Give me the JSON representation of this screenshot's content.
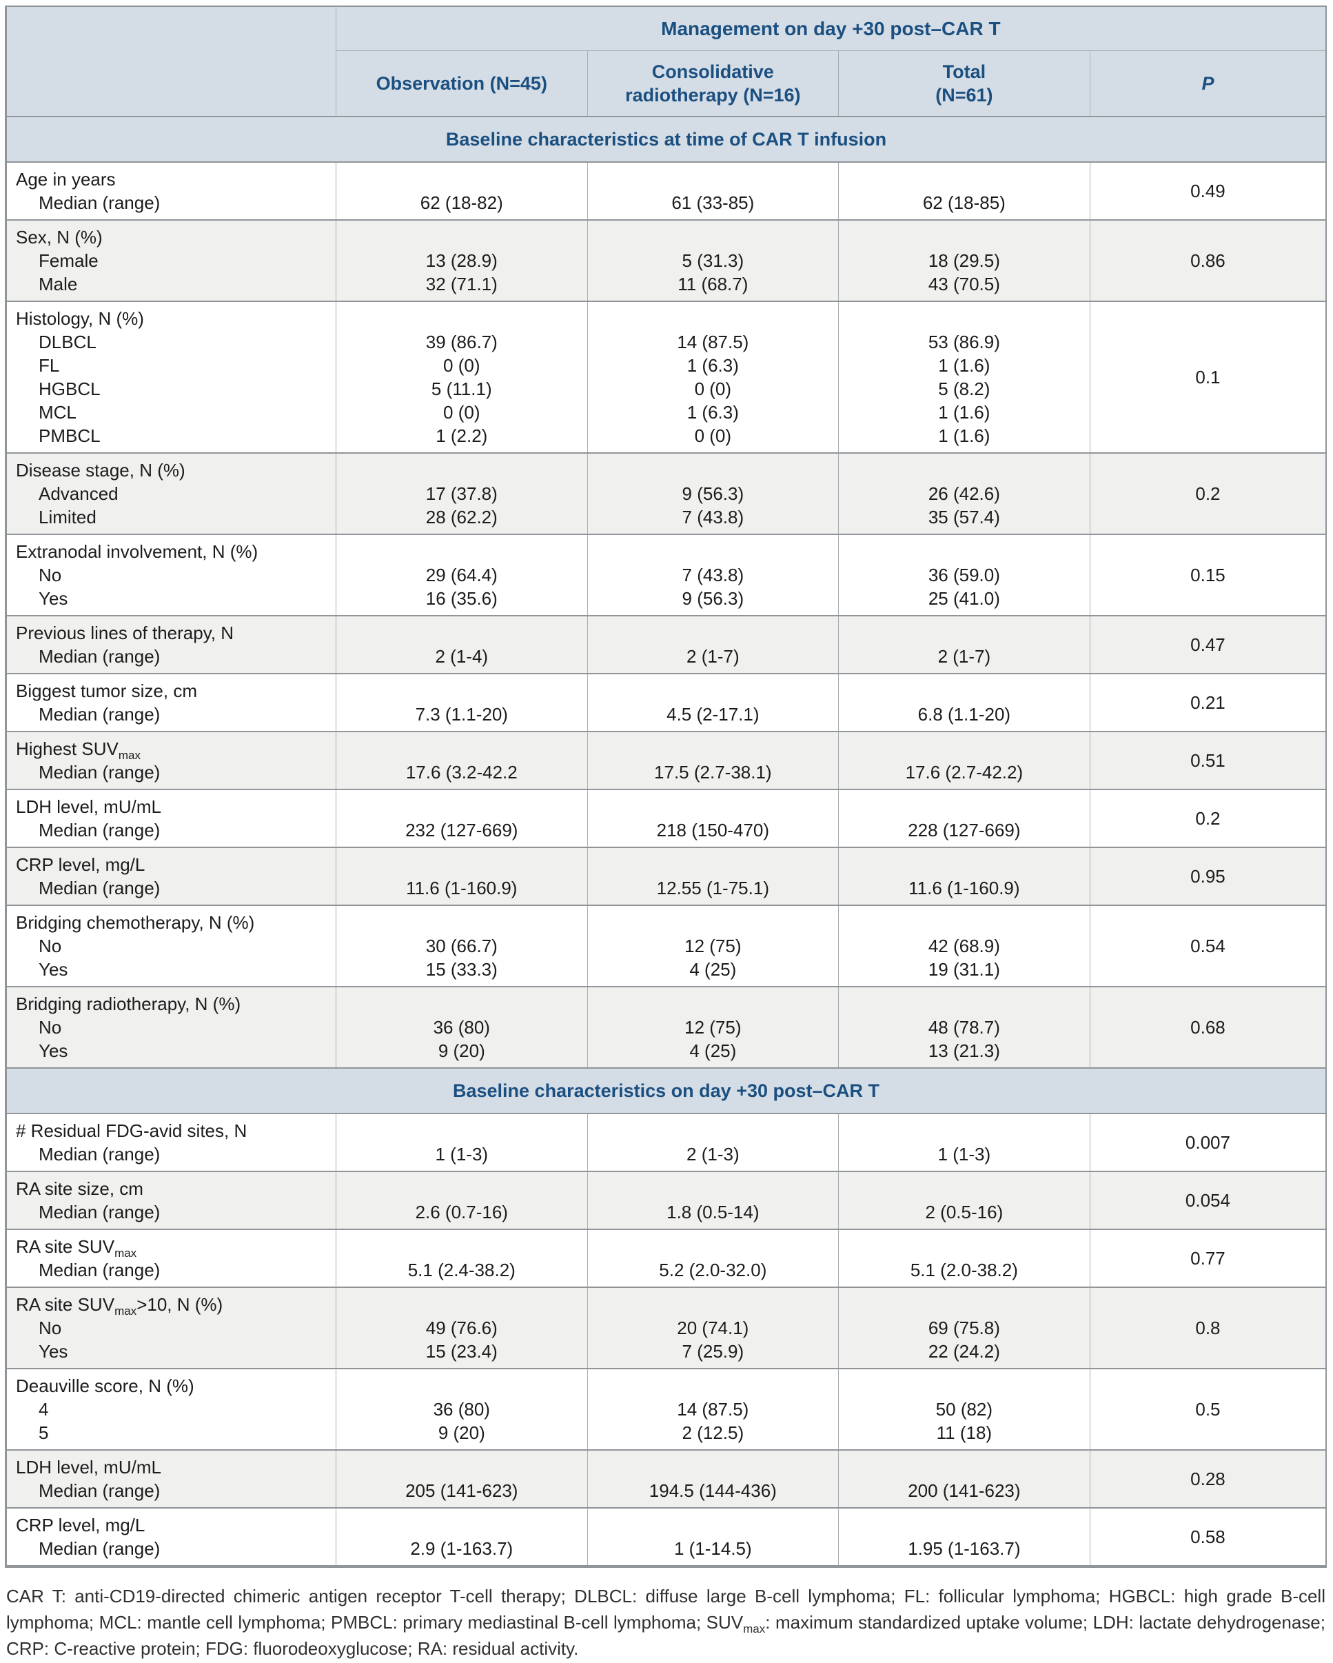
{
  "colors": {
    "header_bg": "#d4dde6",
    "header_text": "#1b4f80",
    "row_alt_bg": "#f0f0ef",
    "border_strong": "#90959a",
    "border_light": "#a8adb3",
    "body_text": "#1c1c1c",
    "footnote_text": "#303030"
  },
  "table": {
    "header": {
      "management_label": "Management on day +30 post–CAR T",
      "columns": [
        {
          "lines": [
            "Observation (N=45)"
          ]
        },
        {
          "lines": [
            "Consolidative",
            "radiotherapy (N=16)"
          ]
        },
        {
          "lines": [
            "Total",
            "(N=61)"
          ]
        },
        {
          "lines": [
            "P"
          ]
        }
      ]
    },
    "sections": [
      {
        "title": "Baseline characteristics at time of CAR T infusion",
        "rows": [
          {
            "heading": "Age in years",
            "heading_sub": "",
            "heading_post": "",
            "items": [
              "Median (range)"
            ],
            "observation": [
              "62 (18-82)"
            ],
            "radiotherapy": [
              "61 (33-85)"
            ],
            "total": [
              "62 (18-85)"
            ],
            "p": "0.49"
          },
          {
            "heading": "Sex, N (%)",
            "heading_sub": "",
            "heading_post": "",
            "items": [
              "Female",
              "Male"
            ],
            "observation": [
              "13 (28.9)",
              "32 (71.1)"
            ],
            "radiotherapy": [
              "5 (31.3)",
              "11 (68.7)"
            ],
            "total": [
              "18 (29.5)",
              "43 (70.5)"
            ],
            "p": "0.86"
          },
          {
            "heading": "Histology, N (%)",
            "heading_sub": "",
            "heading_post": "",
            "items": [
              "DLBCL",
              "FL",
              "HGBCL",
              "MCL",
              "PMBCL"
            ],
            "observation": [
              "39 (86.7)",
              "0 (0)",
              "5 (11.1)",
              "0 (0)",
              "1 (2.2)"
            ],
            "radiotherapy": [
              "14 (87.5)",
              "1 (6.3)",
              "0 (0)",
              "1 (6.3)",
              "0 (0)"
            ],
            "total": [
              "53 (86.9)",
              "1 (1.6)",
              "5 (8.2)",
              "1 (1.6)",
              "1 (1.6)"
            ],
            "p": "0.1"
          },
          {
            "heading": "Disease stage, N (%)",
            "heading_sub": "",
            "heading_post": "",
            "items": [
              "Advanced",
              "Limited"
            ],
            "observation": [
              "17 (37.8)",
              "28 (62.2)"
            ],
            "radiotherapy": [
              "9 (56.3)",
              "7 (43.8)"
            ],
            "total": [
              "26 (42.6)",
              "35 (57.4)"
            ],
            "p": "0.2"
          },
          {
            "heading": "Extranodal involvement, N (%)",
            "heading_sub": "",
            "heading_post": "",
            "items": [
              "No",
              "Yes"
            ],
            "observation": [
              "29 (64.4)",
              "16 (35.6)"
            ],
            "radiotherapy": [
              "7 (43.8)",
              "9 (56.3)"
            ],
            "total": [
              "36 (59.0)",
              "25 (41.0)"
            ],
            "p": "0.15"
          },
          {
            "heading": "Previous lines of therapy, N",
            "heading_sub": "",
            "heading_post": "",
            "items": [
              "Median (range)"
            ],
            "observation": [
              "2 (1-4)"
            ],
            "radiotherapy": [
              "2 (1-7)"
            ],
            "total": [
              "2 (1-7)"
            ],
            "p": "0.47"
          },
          {
            "heading": "Biggest tumor size, cm",
            "heading_sub": "",
            "heading_post": "",
            "items": [
              "Median (range)"
            ],
            "observation": [
              "7.3 (1.1-20)"
            ],
            "radiotherapy": [
              "4.5 (2-17.1)"
            ],
            "total": [
              "6.8 (1.1-20)"
            ],
            "p": "0.21"
          },
          {
            "heading": "Highest SUV",
            "heading_sub": "max",
            "heading_post": "",
            "items": [
              "Median (range)"
            ],
            "observation": [
              "17.6 (3.2-42.2"
            ],
            "radiotherapy": [
              "17.5 (2.7-38.1)"
            ],
            "total": [
              "17.6 (2.7-42.2)"
            ],
            "p": "0.51"
          },
          {
            "heading": "LDH level, mU/mL",
            "heading_sub": "",
            "heading_post": "",
            "items": [
              "Median (range)"
            ],
            "observation": [
              "232 (127-669)"
            ],
            "radiotherapy": [
              "218 (150-470)"
            ],
            "total": [
              "228 (127-669)"
            ],
            "p": "0.2"
          },
          {
            "heading": "CRP level, mg/L",
            "heading_sub": "",
            "heading_post": "",
            "items": [
              "Median (range)"
            ],
            "observation": [
              "11.6 (1-160.9)"
            ],
            "radiotherapy": [
              "12.55 (1-75.1)"
            ],
            "total": [
              "11.6 (1-160.9)"
            ],
            "p": "0.95"
          },
          {
            "heading": "Bridging chemotherapy, N (%)",
            "heading_sub": "",
            "heading_post": "",
            "items": [
              "No",
              "Yes"
            ],
            "observation": [
              "30 (66.7)",
              "15 (33.3)"
            ],
            "radiotherapy": [
              "12 (75)",
              "4 (25)"
            ],
            "total": [
              "42 (68.9)",
              "19 (31.1)"
            ],
            "p": "0.54"
          },
          {
            "heading": "Bridging radiotherapy, N (%)",
            "heading_sub": "",
            "heading_post": "",
            "items": [
              "No",
              "Yes"
            ],
            "observation": [
              "36 (80)",
              "9 (20)"
            ],
            "radiotherapy": [
              "12 (75)",
              "4 (25)"
            ],
            "total": [
              "48 (78.7)",
              "13 (21.3)"
            ],
            "p": "0.68"
          }
        ]
      },
      {
        "title": "Baseline characteristics on day +30 post–CAR T",
        "rows": [
          {
            "heading": "# Residual FDG-avid sites, N",
            "heading_sub": "",
            "heading_post": "",
            "items": [
              "Median (range)"
            ],
            "observation": [
              "1 (1-3)"
            ],
            "radiotherapy": [
              "2 (1-3)"
            ],
            "total": [
              "1 (1-3)"
            ],
            "p": "0.007"
          },
          {
            "heading": "RA site size, cm",
            "heading_sub": "",
            "heading_post": "",
            "items": [
              "Median (range)"
            ],
            "observation": [
              "2.6 (0.7-16)"
            ],
            "radiotherapy": [
              "1.8 (0.5-14)"
            ],
            "total": [
              "2 (0.5-16)"
            ],
            "p": "0.054"
          },
          {
            "heading": "RA site SUV",
            "heading_sub": "max",
            "heading_post": "",
            "items": [
              "Median (range)"
            ],
            "observation": [
              "5.1 (2.4-38.2)"
            ],
            "radiotherapy": [
              "5.2 (2.0-32.0)"
            ],
            "total": [
              "5.1 (2.0-38.2)"
            ],
            "p": "0.77"
          },
          {
            "heading": "RA site SUV",
            "heading_sub": "max",
            "heading_post": ">10, N (%)",
            "items": [
              "No",
              "Yes"
            ],
            "observation": [
              "49 (76.6)",
              "15 (23.4)"
            ],
            "radiotherapy": [
              "20 (74.1)",
              "7 (25.9)"
            ],
            "total": [
              "69 (75.8)",
              "22 (24.2)"
            ],
            "p": "0.8"
          },
          {
            "heading": "Deauville score, N (%)",
            "heading_sub": "",
            "heading_post": "",
            "items": [
              "4",
              "5"
            ],
            "observation": [
              "36 (80)",
              "9 (20)"
            ],
            "radiotherapy": [
              "14 (87.5)",
              "2 (12.5)"
            ],
            "total": [
              "50 (82)",
              "11 (18)"
            ],
            "p": "0.5"
          },
          {
            "heading": "LDH level, mU/mL",
            "heading_sub": "",
            "heading_post": "",
            "items": [
              "Median (range)"
            ],
            "observation": [
              "205 (141-623)"
            ],
            "radiotherapy": [
              "194.5 (144-436)"
            ],
            "total": [
              "200 (141-623)"
            ],
            "p": "0.28"
          },
          {
            "heading": "CRP level, mg/L",
            "heading_sub": "",
            "heading_post": "",
            "items": [
              "Median (range)"
            ],
            "observation": [
              "2.9 (1-163.7)"
            ],
            "radiotherapy": [
              "1 (1-14.5)"
            ],
            "total": [
              "1.95 (1-163.7)"
            ],
            "p": "0.58"
          }
        ]
      }
    ]
  },
  "footnote": {
    "pre": "CAR T: anti-CD19-directed chimeric antigen receptor T-cell therapy; DLBCL: diffuse large B-cell lymphoma; FL: follicular lymphoma; HGBCL: high grade B-cell lymphoma; MCL: mantle cell lymphoma; PMBCL: primary mediastinal B-cell lymphoma; SUV",
    "sub": "max",
    "post": ":  maximum standardized uptake volume; LDH: lactate dehydrogenase; CRP: C-reactive protein; FDG: fluorodeoxyglucose; RA: residual activity."
  }
}
